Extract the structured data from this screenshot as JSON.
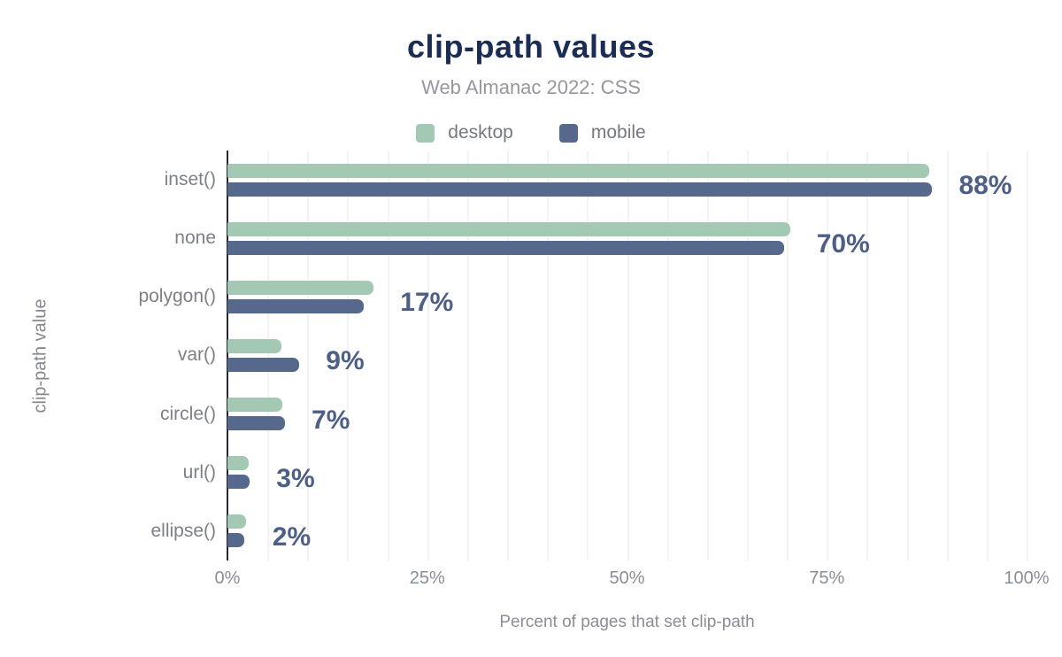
{
  "colors": {
    "background": "#ffffff",
    "title": "#1c2d55",
    "subtitle": "#94989e",
    "legend_text": "#75797f",
    "category_label": "#7c8187",
    "value_label": "#4d5f87",
    "tick_label": "#8a8e95",
    "axis_line": "#26282d",
    "gridline": "#f4f2f3",
    "desktop": "#a3c8b3",
    "mobile": "#56698d"
  },
  "chart_data": {
    "type": "bar",
    "orientation": "horizontal",
    "title": "clip-path values",
    "subtitle": "Web Almanac 2022: CSS",
    "categories": [
      "inset()",
      "none",
      "polygon()",
      "var()",
      "circle()",
      "url()",
      "ellipse()"
    ],
    "series": [
      {
        "name": "desktop",
        "color": "#a3c8b3",
        "values": [
          87.8,
          70.4,
          18.3,
          6.7,
          6.9,
          2.7,
          2.3
        ]
      },
      {
        "name": "mobile",
        "color": "#56698d",
        "values": [
          88.2,
          69.7,
          17.1,
          9.0,
          7.2,
          2.8,
          2.1
        ]
      }
    ],
    "value_labels": [
      "88%",
      "70%",
      "17%",
      "9%",
      "7%",
      "3%",
      "2%"
    ],
    "xlabel": "Percent of pages that set clip-path",
    "ylabel": "clip-path value",
    "xlim": [
      0,
      100
    ],
    "x_ticks": [
      "0%",
      "25%",
      "50%",
      "75%",
      "100%"
    ],
    "x_tick_values": [
      0,
      25,
      50,
      75,
      100
    ],
    "minor_grid_step": 5,
    "grid": "vertical-minor-gridlines",
    "legend_position": "top-center"
  }
}
